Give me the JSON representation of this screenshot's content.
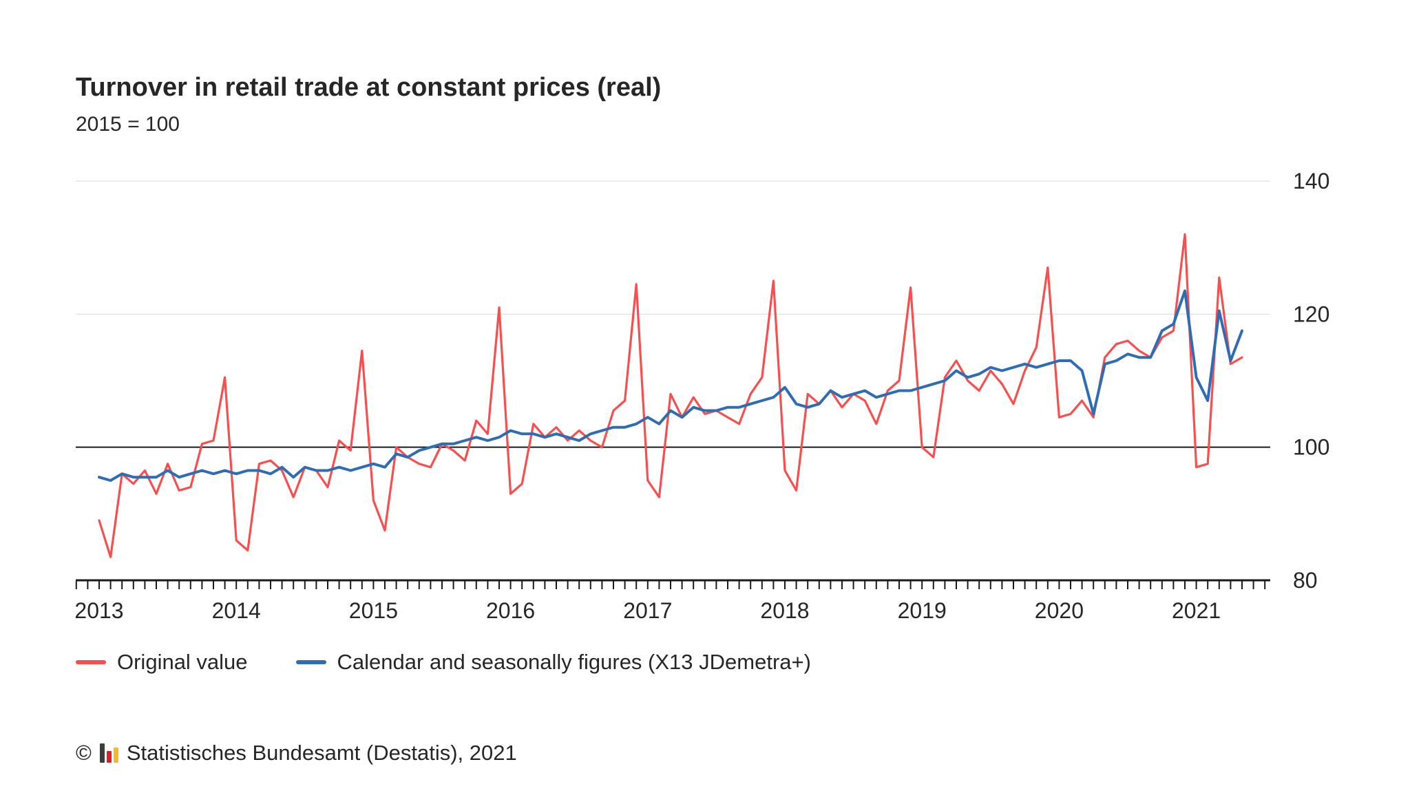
{
  "chart_data": {
    "type": "line",
    "title": "Turnover in retail trade at constant prices (real)",
    "subtitle": "2015 = 100",
    "ylabel": "",
    "xlabel": "",
    "ylim": [
      80,
      140
    ],
    "yticks": [
      80,
      100,
      120,
      140
    ],
    "baseline": 100,
    "year_ticks": [
      2013,
      2014,
      2015,
      2016,
      2017,
      2018,
      2019,
      2020,
      2021
    ],
    "grid": true,
    "legend_position": "bottom",
    "x_months": [
      "2013-01",
      "2013-02",
      "2013-03",
      "2013-04",
      "2013-05",
      "2013-06",
      "2013-07",
      "2013-08",
      "2013-09",
      "2013-10",
      "2013-11",
      "2013-12",
      "2014-01",
      "2014-02",
      "2014-03",
      "2014-04",
      "2014-05",
      "2014-06",
      "2014-07",
      "2014-08",
      "2014-09",
      "2014-10",
      "2014-11",
      "2014-12",
      "2015-01",
      "2015-02",
      "2015-03",
      "2015-04",
      "2015-05",
      "2015-06",
      "2015-07",
      "2015-08",
      "2015-09",
      "2015-10",
      "2015-11",
      "2015-12",
      "2016-01",
      "2016-02",
      "2016-03",
      "2016-04",
      "2016-05",
      "2016-06",
      "2016-07",
      "2016-08",
      "2016-09",
      "2016-10",
      "2016-11",
      "2016-12",
      "2017-01",
      "2017-02",
      "2017-03",
      "2017-04",
      "2017-05",
      "2017-06",
      "2017-07",
      "2017-08",
      "2017-09",
      "2017-10",
      "2017-11",
      "2017-12",
      "2018-01",
      "2018-02",
      "2018-03",
      "2018-04",
      "2018-05",
      "2018-06",
      "2018-07",
      "2018-08",
      "2018-09",
      "2018-10",
      "2018-11",
      "2018-12",
      "2019-01",
      "2019-02",
      "2019-03",
      "2019-04",
      "2019-05",
      "2019-06",
      "2019-07",
      "2019-08",
      "2019-09",
      "2019-10",
      "2019-11",
      "2019-12",
      "2020-01",
      "2020-02",
      "2020-03",
      "2020-04",
      "2020-05",
      "2020-06",
      "2020-07",
      "2020-08",
      "2020-09",
      "2020-10",
      "2020-11",
      "2020-12",
      "2021-01",
      "2021-02",
      "2021-03",
      "2021-04",
      "2021-05"
    ],
    "series": [
      {
        "name": "Original value",
        "color": "#fa4d4d",
        "values": [
          89.0,
          83.5,
          96.0,
          94.5,
          96.5,
          93.0,
          97.5,
          93.5,
          94.0,
          100.5,
          101.0,
          110.5,
          86.0,
          84.5,
          97.5,
          98.0,
          96.5,
          92.5,
          97.0,
          96.5,
          94.0,
          101.0,
          99.5,
          114.5,
          92.0,
          87.5,
          100.0,
          98.5,
          97.5,
          97.0,
          100.5,
          99.5,
          98.0,
          104.0,
          102.0,
          121.0,
          93.0,
          94.5,
          103.5,
          101.5,
          103.0,
          101.0,
          102.5,
          101.0,
          100.0,
          105.5,
          107.0,
          124.5,
          95.0,
          92.5,
          108.0,
          104.5,
          107.5,
          105.0,
          105.5,
          104.5,
          103.5,
          108.0,
          110.5,
          125.0,
          96.5,
          93.5,
          108.0,
          106.5,
          108.5,
          106.0,
          108.0,
          107.0,
          103.5,
          108.5,
          110.0,
          124.0,
          100.0,
          98.5,
          110.5,
          113.0,
          110.0,
          108.5,
          111.5,
          109.5,
          106.5,
          111.5,
          115.0,
          127.0,
          104.5,
          105.0,
          107.0,
          104.5,
          113.5,
          115.5,
          116.0,
          114.5,
          113.5,
          116.5,
          117.5,
          132.0,
          97.0,
          97.5,
          125.5,
          112.5,
          113.5
        ]
      },
      {
        "name": "Calendar and seasonally figures (X13 JDemetra+)",
        "color": "#2e6db4",
        "values": [
          95.5,
          95.0,
          96.0,
          95.5,
          95.5,
          95.5,
          96.5,
          95.5,
          96.0,
          96.5,
          96.0,
          96.5,
          96.0,
          96.5,
          96.5,
          96.0,
          97.0,
          95.5,
          97.0,
          96.5,
          96.5,
          97.0,
          96.5,
          97.0,
          97.5,
          97.0,
          99.0,
          98.5,
          99.5,
          100.0,
          100.5,
          100.5,
          101.0,
          101.5,
          101.0,
          101.5,
          102.5,
          102.0,
          102.0,
          101.5,
          102.0,
          101.5,
          101.0,
          102.0,
          102.5,
          103.0,
          103.0,
          103.5,
          104.5,
          103.5,
          105.5,
          104.5,
          106.0,
          105.5,
          105.5,
          106.0,
          106.0,
          106.5,
          107.0,
          107.5,
          109.0,
          106.5,
          106.0,
          106.5,
          108.5,
          107.5,
          108.0,
          108.5,
          107.5,
          108.0,
          108.5,
          108.5,
          109.0,
          109.5,
          110.0,
          111.5,
          110.5,
          111.0,
          112.0,
          111.5,
          112.0,
          112.5,
          112.0,
          112.5,
          113.0,
          113.0,
          111.5,
          105.0,
          112.5,
          113.0,
          114.0,
          113.5,
          113.5,
          117.5,
          118.5,
          123.5,
          110.5,
          107.0,
          120.5,
          113.0,
          117.5
        ]
      }
    ]
  },
  "footer": {
    "copyright": "©",
    "source": "Statistisches Bundesamt (Destatis), 2021",
    "logo_colors": [
      "#3c3c3c",
      "#df1f1f",
      "#f5b826"
    ]
  }
}
